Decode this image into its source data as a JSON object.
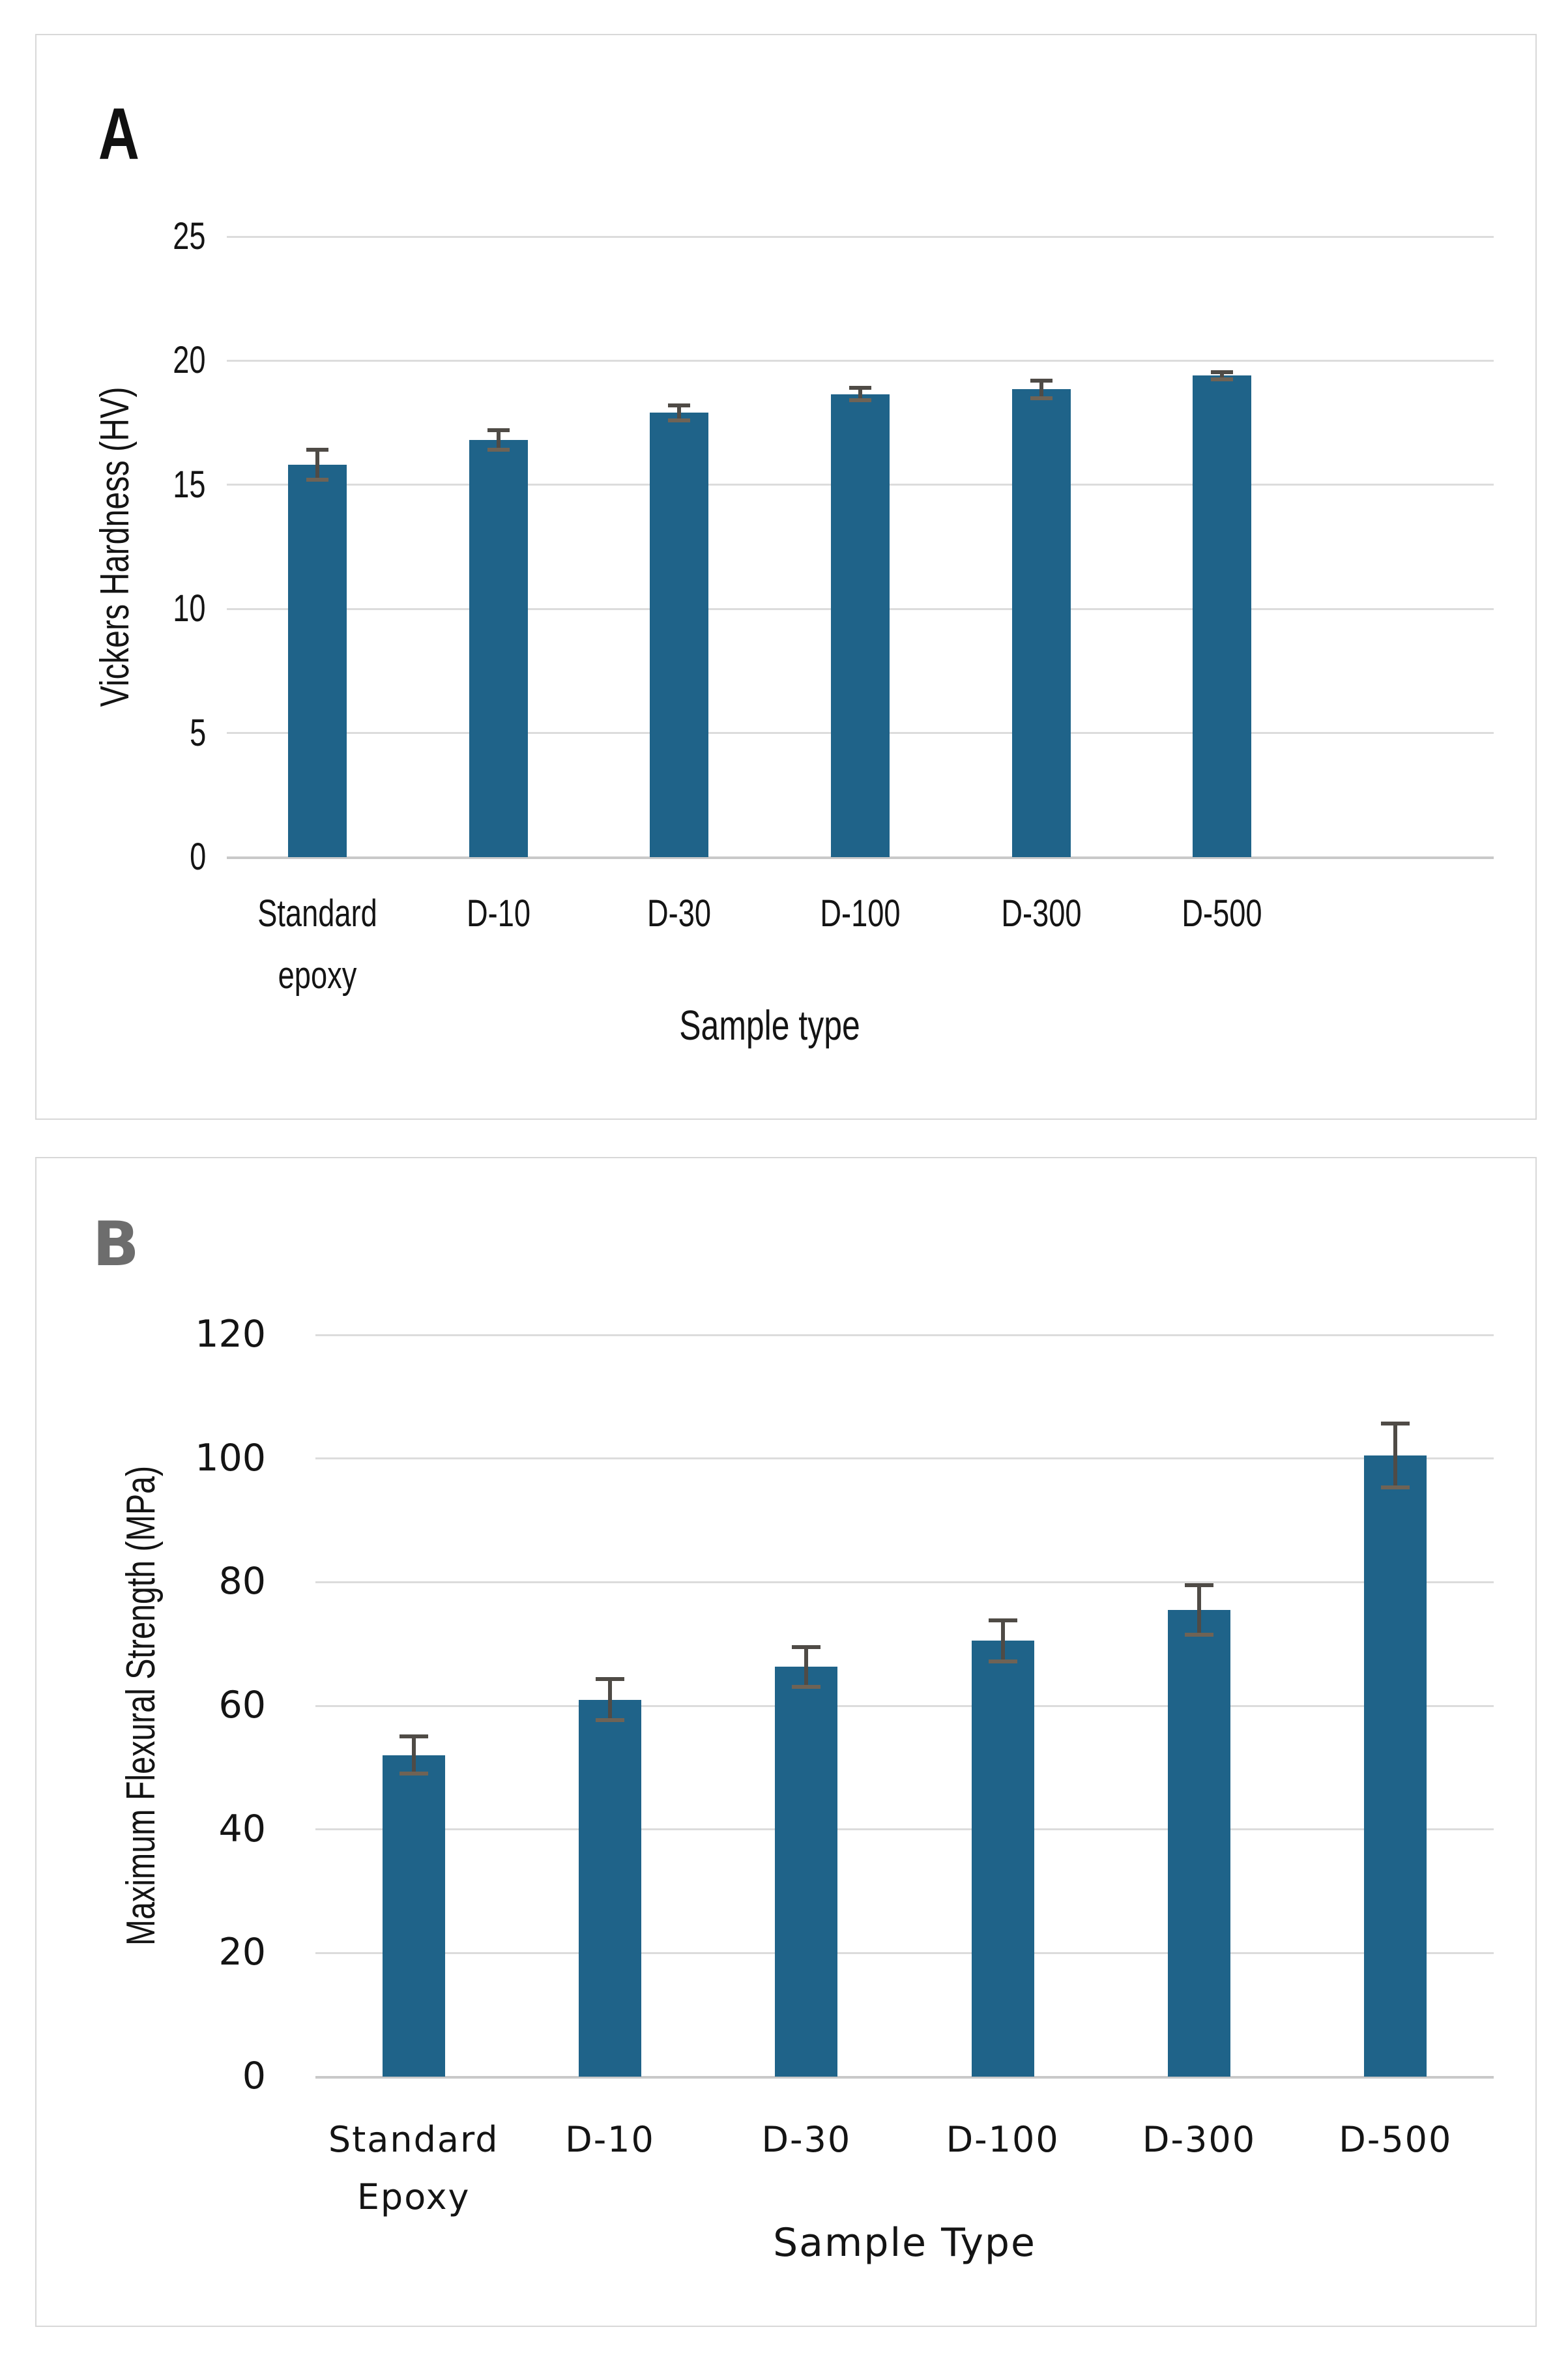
{
  "figure": {
    "panels": [
      {
        "label": "A"
      },
      {
        "label": "B"
      }
    ]
  },
  "colors": {
    "bar": "#1f6389",
    "error_line": "#4f4b46",
    "error_cap": "#6f6355",
    "gridline": "#dcdcdc",
    "axis_line": "#c9c9c9",
    "frame_border": "#d8d8d8",
    "panel_a_label": "#111111",
    "panel_b_label": "#6d6d6d",
    "text": "#141414"
  },
  "chart_data": [
    {
      "panel": "A",
      "type": "bar",
      "title": "",
      "categories": [
        "Standard epoxy",
        "D-10",
        "D-30",
        "D-100",
        "D-300",
        "D-500"
      ],
      "values": [
        15.8,
        16.8,
        17.9,
        18.65,
        18.85,
        19.4
      ],
      "errors": [
        0.6,
        0.4,
        0.3,
        0.25,
        0.35,
        0.15
      ],
      "xlabel": "Sample type",
      "ylabel": "Vickers Hardness (HV)",
      "ylim": [
        0,
        25
      ],
      "yticks": [
        0,
        5,
        10,
        15,
        20,
        25
      ],
      "grid": true,
      "legend": "none",
      "bar_color": "#1f6389"
    },
    {
      "panel": "B",
      "type": "bar",
      "title": "",
      "categories": [
        "Standard Epoxy",
        "D-10",
        "D-30",
        "D-100",
        "D-300",
        "D-500"
      ],
      "values": [
        52,
        61,
        66.3,
        70.5,
        75.5,
        100.5
      ],
      "errors": [
        3.0,
        3.3,
        3.2,
        3.3,
        4.0,
        5.2
      ],
      "xlabel": "Sample Type",
      "ylabel": "Maximum Flexural Strength (MPa)",
      "ylim": [
        0,
        120
      ],
      "yticks": [
        0,
        20,
        40,
        60,
        80,
        100,
        120
      ],
      "grid": true,
      "legend": "none",
      "bar_color": "#1f6389"
    }
  ]
}
